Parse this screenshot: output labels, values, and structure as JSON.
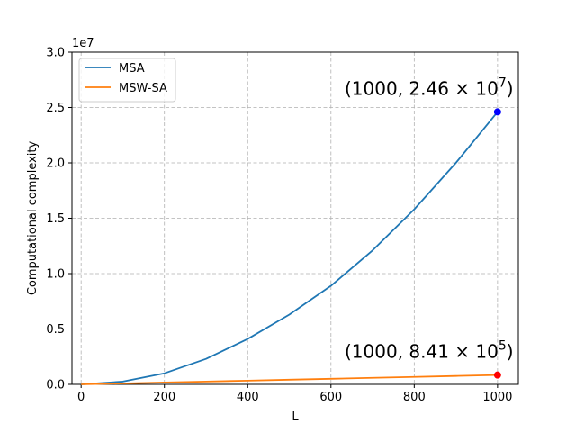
{
  "chart_data": {
    "type": "line",
    "title": "",
    "xlabel": "L",
    "ylabel": "Computational complexity",
    "y_offset_label": "1e7",
    "xlim": [
      -22,
      1050
    ],
    "ylim": [
      0,
      30000000
    ],
    "xticks": [
      0,
      200,
      400,
      600,
      800,
      1000
    ],
    "xtick_labels": [
      "0",
      "200",
      "400",
      "600",
      "800",
      "1000"
    ],
    "yticks": [
      0,
      5000000,
      10000000,
      15000000,
      20000000,
      25000000,
      30000000
    ],
    "ytick_labels": [
      "0.0",
      "0.5",
      "1.0",
      "1.5",
      "2.0",
      "2.5",
      "3.0"
    ],
    "grid": true,
    "legend_position": "top-left",
    "x": [
      0,
      100,
      200,
      300,
      400,
      500,
      600,
      700,
      800,
      900,
      1000
    ],
    "series": [
      {
        "name": "MSA",
        "color": "#1f77b4",
        "values": [
          0,
          250000,
          1000000,
          2300000,
          4100000,
          6300000,
          8900000,
          12100000,
          15800000,
          20000000,
          24600000
        ]
      },
      {
        "name": "MSW-SA",
        "color": "#ff7f0e",
        "values": [
          0,
          84100,
          168200,
          252300,
          336400,
          420500,
          504600,
          588700,
          672800,
          756900,
          841000
        ]
      }
    ],
    "highlight_points": [
      {
        "x": 1000,
        "y": 24600000,
        "color": "#0000ff"
      },
      {
        "x": 1000,
        "y": 841000,
        "color": "#ff0000"
      }
    ],
    "annotations": [
      {
        "x": 1000,
        "y": 24600000,
        "base": "(1000, 2.46 × 10",
        "exp": "7",
        "close": ")"
      },
      {
        "x": 1000,
        "y": 841000,
        "base": "(1000, 8.41 × 10",
        "exp": "5",
        "close": ")"
      }
    ]
  }
}
